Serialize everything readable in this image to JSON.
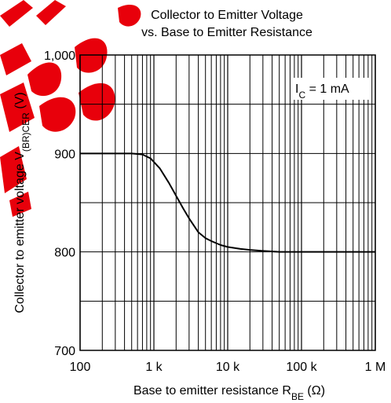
{
  "chart_data": {
    "type": "line",
    "title_lines": [
      "Collector to Emitter Voltage",
      "vs. Base to Emitter Resistance"
    ],
    "xlabel": "Base to emitter resistance",
    "xlabel_symbol": "R",
    "xlabel_symbol_sub": "BE",
    "xlabel_unit": "(Ω)",
    "ylabel": "Collector to emitter voltage",
    "ylabel_symbol": "V",
    "ylabel_symbol_sub": "(BR)CER",
    "ylabel_unit": "(V)",
    "x_scale": "log",
    "xlim": [
      100,
      1000000
    ],
    "ylim": [
      700,
      1000
    ],
    "x_ticks": [
      100,
      1000,
      10000,
      100000,
      1000000
    ],
    "x_tick_labels": [
      "100",
      "1 k",
      "10 k",
      "100 k",
      "1 M"
    ],
    "y_ticks": [
      700,
      800,
      900,
      1000
    ],
    "y_tick_labels": [
      "700",
      "800",
      "900",
      "1,000"
    ],
    "y_minor_step": 50,
    "grid": true,
    "annotation": {
      "symbol": "I",
      "sub": "C",
      "text": " = 1 mA"
    },
    "series": [
      {
        "x": [
          100,
          500,
          700,
          900,
          1200,
          1600,
          2000,
          2500,
          3000,
          4000,
          5000,
          6000,
          8000,
          10000,
          15000,
          20000,
          30000,
          50000,
          100000,
          1000000
        ],
        "y": [
          900,
          900,
          899,
          895,
          885,
          870,
          857,
          844,
          834,
          820,
          814,
          811,
          807,
          805,
          803,
          802,
          801,
          800,
          800,
          800
        ]
      }
    ]
  }
}
